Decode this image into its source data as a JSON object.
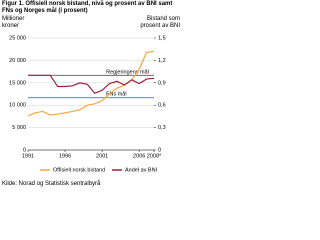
{
  "chart_data": {
    "type": "line",
    "title": "Figur 1. Offisiell norsk bistand, nivå og prosent av BNI samt FNs og Norges mål (i prosent)",
    "y_label": "Millioner kroner",
    "y2_label": "Bistand som prosent av BNI",
    "source": "Kilde: Norad og Statistisk sentralbyrå",
    "x": [
      1991,
      1992,
      1993,
      1994,
      1995,
      1996,
      1997,
      1998,
      1999,
      2000,
      2001,
      2002,
      2003,
      2004,
      2005,
      2006,
      2007,
      2008
    ],
    "xlim": [
      1991,
      2008
    ],
    "xticks": [
      1991,
      1996,
      2001,
      2006,
      {
        "value": 2008,
        "label": "2008*"
      }
    ],
    "ylim": [
      0,
      25000
    ],
    "yticks": [
      0,
      {
        "value": 5000,
        "label": "5 000"
      },
      {
        "value": 10000,
        "label": "10 000"
      },
      {
        "value": 15000,
        "label": "15 000"
      },
      {
        "value": 20000,
        "label": "20 000"
      },
      {
        "value": 25000,
        "label": "25 000"
      }
    ],
    "y2lim": [
      0,
      1.5
    ],
    "y2ticks": [
      0,
      {
        "value": 0.3,
        "label": "0,3"
      },
      {
        "value": 0.6,
        "label": "0,6"
      },
      {
        "value": 0.9,
        "label": "0,9"
      },
      {
        "value": 1.2,
        "label": "1,2"
      },
      {
        "value": 1.5,
        "label": "1,5"
      }
    ],
    "grid": true,
    "series": [
      {
        "name": "Offisiell norsk bistand",
        "color": "#f7a63b",
        "values": [
          7600,
          8300,
          8600,
          7800,
          8000,
          8300,
          8600,
          9000,
          10000,
          10300,
          11000,
          12500,
          13800,
          14500,
          15600,
          18000,
          21800,
          22000
        ]
      },
      {
        "name": "Andel av BNI",
        "color": "#9e1f3d",
        "axis": "y2",
        "values": [
          1.0,
          1.0,
          1.0,
          1.0,
          0.85,
          0.85,
          0.86,
          0.9,
          0.88,
          0.76,
          0.8,
          0.89,
          0.92,
          0.87,
          0.94,
          0.89,
          0.95,
          0.96
        ]
      }
    ],
    "reference_lines": [
      {
        "label": "Regjeringens mål",
        "value": 1.0,
        "axis": "y2",
        "color": "#555555"
      },
      {
        "label": "FNs mål",
        "value": 0.7,
        "axis": "y2",
        "color": "#2a5db0"
      }
    ]
  }
}
